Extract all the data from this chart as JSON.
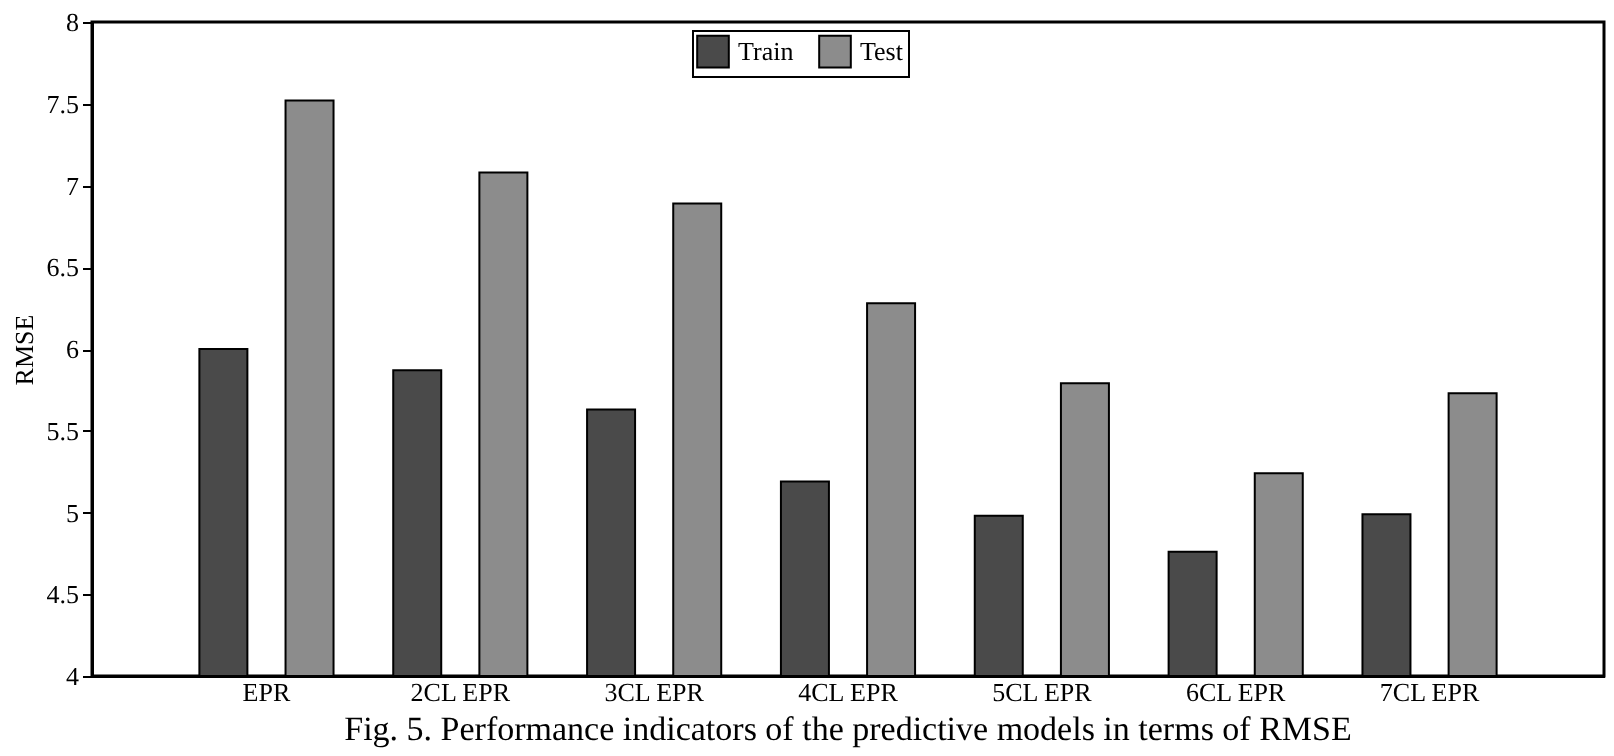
{
  "chart_data": {
    "type": "bar",
    "ylabel": "RMSE",
    "categories": [
      "EPR",
      "2CL EPR",
      "3CL EPR",
      "4CL EPR",
      "5CL EPR",
      "6CL EPR",
      "7CL EPR"
    ],
    "series": [
      {
        "name": "Train",
        "color": "#4a4a4a",
        "values": [
          6.0,
          5.87,
          5.63,
          5.19,
          4.98,
          4.76,
          4.99
        ]
      },
      {
        "name": "Test",
        "color": "#8c8c8c",
        "values": [
          7.52,
          7.08,
          6.89,
          6.28,
          5.79,
          5.24,
          5.73
        ]
      }
    ],
    "ylim": [
      4,
      8
    ],
    "yticks": [
      4,
      4.5,
      5,
      5.5,
      6,
      6.5,
      7,
      7.5,
      8
    ],
    "grid": false,
    "legend": "top",
    "annotations": [
      "Fig. 5. Performance indicators of the predictive models in terms of RMSE"
    ]
  }
}
